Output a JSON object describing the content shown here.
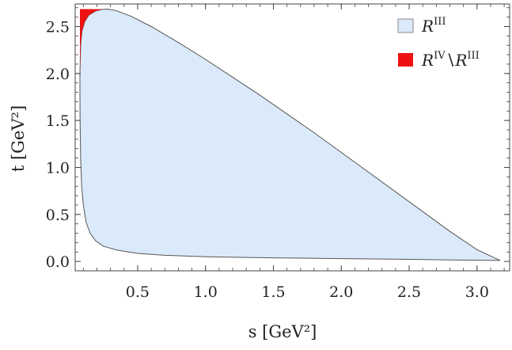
{
  "chart_data": {
    "type": "area",
    "xlabel": "s [GeV²]",
    "ylabel": "t [GeV²]",
    "xlim": [
      0.04,
      3.24
    ],
    "ylim": [
      -0.1,
      2.74
    ],
    "grid": false,
    "legend_position": "top-right",
    "xticks": [
      "0.5",
      "1.0",
      "1.5",
      "2.0",
      "2.5",
      "3.0"
    ],
    "yticks": [
      "0.0",
      "0.5",
      "1.0",
      "1.5",
      "2.0",
      "2.5"
    ],
    "series": [
      {
        "name": "R^III",
        "legend_main": "R",
        "legend_sup": "III",
        "color": "#dbeafa",
        "stroke": "#555555",
        "boundary": [
          [
            0.075,
            2.0
          ],
          [
            0.08,
            2.3
          ],
          [
            0.09,
            2.45
          ],
          [
            0.11,
            2.55
          ],
          [
            0.14,
            2.62
          ],
          [
            0.19,
            2.665
          ],
          [
            0.24,
            2.682
          ],
          [
            0.28,
            2.685
          ],
          [
            0.34,
            2.67
          ],
          [
            0.45,
            2.61
          ],
          [
            0.6,
            2.5
          ],
          [
            0.8,
            2.33
          ],
          [
            1.0,
            2.15
          ],
          [
            1.2,
            1.96
          ],
          [
            1.4,
            1.77
          ],
          [
            1.6,
            1.57
          ],
          [
            1.8,
            1.37
          ],
          [
            2.0,
            1.16
          ],
          [
            2.2,
            0.95
          ],
          [
            2.4,
            0.74
          ],
          [
            2.6,
            0.53
          ],
          [
            2.8,
            0.32
          ],
          [
            3.0,
            0.125
          ],
          [
            3.17,
            0.01
          ],
          [
            2.8,
            0.016
          ],
          [
            2.4,
            0.024
          ],
          [
            2.0,
            0.03
          ],
          [
            1.5,
            0.038
          ],
          [
            1.0,
            0.05
          ],
          [
            0.7,
            0.065
          ],
          [
            0.5,
            0.085
          ],
          [
            0.35,
            0.12
          ],
          [
            0.25,
            0.16
          ],
          [
            0.19,
            0.22
          ],
          [
            0.15,
            0.3
          ],
          [
            0.12,
            0.42
          ],
          [
            0.1,
            0.6
          ],
          [
            0.088,
            0.8
          ],
          [
            0.08,
            1.1
          ],
          [
            0.076,
            1.5
          ],
          [
            0.075,
            1.8
          ]
        ]
      },
      {
        "name": "R^IV \\ R^III",
        "legend_main": "R",
        "legend_sup": "IV",
        "legend_sep": "∖",
        "legend_main2": "R",
        "legend_sup2": "III",
        "color": "#ee1111",
        "boundary": [
          [
            0.075,
            2.0
          ],
          [
            0.075,
            2.685
          ],
          [
            0.24,
            2.685
          ],
          [
            0.19,
            2.665
          ],
          [
            0.14,
            2.62
          ],
          [
            0.11,
            2.55
          ],
          [
            0.09,
            2.45
          ],
          [
            0.08,
            2.3
          ]
        ]
      }
    ]
  }
}
